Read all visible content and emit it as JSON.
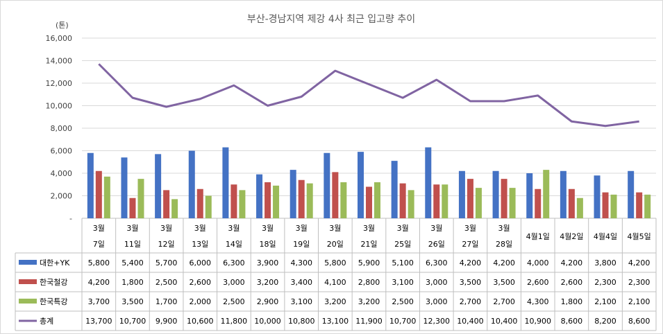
{
  "chart_data": {
    "type": "bar",
    "title": "부산-경남지역 제강 4사 최근 입고량 추이",
    "ylabel": "(톤)",
    "ylim": [
      0,
      16000
    ],
    "yticks": [
      "-",
      "2,000",
      "4,000",
      "6,000",
      "8,000",
      "10,000",
      "12,000",
      "14,000",
      "16,000"
    ],
    "grid": true,
    "categories": [
      [
        "3월",
        "7일"
      ],
      [
        "3월",
        "11일"
      ],
      [
        "3월",
        "12일"
      ],
      [
        "3월",
        "13일"
      ],
      [
        "3월",
        "14일"
      ],
      [
        "3월",
        "18일"
      ],
      [
        "3월",
        "19일"
      ],
      [
        "3월",
        "20일"
      ],
      [
        "3월",
        "21일"
      ],
      [
        "3월",
        "25일"
      ],
      [
        "3월",
        "26일"
      ],
      [
        "3월",
        "27일"
      ],
      [
        "3월",
        "28일"
      ],
      [
        "4월1일"
      ],
      [
        "4월2일"
      ],
      [
        "4월4일"
      ],
      [
        "4월5일"
      ]
    ],
    "series": [
      {
        "name": "대한+YK",
        "type": "bar",
        "color": "#4472c4",
        "values": [
          5800,
          5400,
          5700,
          6000,
          6300,
          3900,
          4300,
          5800,
          5900,
          5100,
          6300,
          4200,
          4200,
          4000,
          4200,
          3800,
          4200
        ],
        "labels": [
          "5,800",
          "5,400",
          "5,700",
          "6,000",
          "6,300",
          "3,900",
          "4,300",
          "5,800",
          "5,900",
          "5,100",
          "6,300",
          "4,200",
          "4,200",
          "4,000",
          "4,200",
          "3,800",
          "4,200"
        ]
      },
      {
        "name": "한국철강",
        "type": "bar",
        "color": "#c0504d",
        "values": [
          4200,
          1800,
          2500,
          2600,
          3000,
          3200,
          3400,
          4100,
          2800,
          3100,
          3000,
          3500,
          3500,
          2600,
          2600,
          2300,
          2300
        ],
        "labels": [
          "4,200",
          "1,800",
          "2,500",
          "2,600",
          "3,000",
          "3,200",
          "3,400",
          "4,100",
          "2,800",
          "3,100",
          "3,000",
          "3,500",
          "3,500",
          "2,600",
          "2,600",
          "2,300",
          "2,300"
        ]
      },
      {
        "name": "한국특강",
        "type": "bar",
        "color": "#9bbb59",
        "values": [
          3700,
          3500,
          1700,
          2000,
          2500,
          2900,
          3100,
          3200,
          3200,
          2500,
          3000,
          2700,
          2700,
          4300,
          1800,
          2100,
          2100
        ],
        "labels": [
          "3,700",
          "3,500",
          "1,700",
          "2,000",
          "2,500",
          "2,900",
          "3,100",
          "3,200",
          "3,200",
          "2,500",
          "3,000",
          "2,700",
          "2,700",
          "4,300",
          "1,800",
          "2,100",
          "2,100"
        ]
      },
      {
        "name": "총계",
        "type": "line",
        "color": "#8064a2",
        "values": [
          13700,
          10700,
          9900,
          10600,
          11800,
          10000,
          10800,
          13100,
          11900,
          10700,
          12300,
          10400,
          10400,
          10900,
          8600,
          8200,
          8600
        ],
        "labels": [
          "13,700",
          "10,700",
          "9,900",
          "10,600",
          "11,800",
          "10,000",
          "10,800",
          "13,100",
          "11,900",
          "10,700",
          "12,300",
          "10,400",
          "10,400",
          "10,900",
          "8,600",
          "8,200",
          "8,600"
        ]
      }
    ]
  }
}
